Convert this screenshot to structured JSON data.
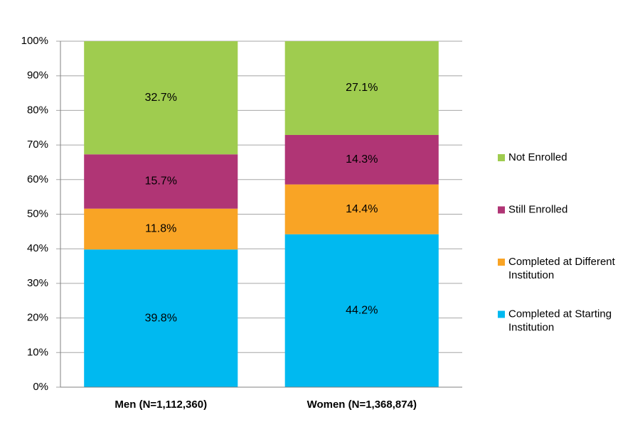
{
  "chart_data": {
    "type": "stacked-bar",
    "categories": [
      "Men (N=1,112,360)",
      "Women (N=1,368,874)"
    ],
    "series": [
      {
        "name": "Completed at Starting Institution",
        "color": "#00b9f0",
        "values": [
          39.8,
          44.2
        ],
        "value_labels": [
          "39.8%",
          "44.2%"
        ]
      },
      {
        "name": "Completed at Different Institution",
        "color": "#f9a425",
        "values": [
          11.8,
          14.4
        ],
        "value_labels": [
          "11.8%",
          "14.4%"
        ]
      },
      {
        "name": "Still Enrolled",
        "color": "#b03575",
        "values": [
          15.7,
          14.3
        ],
        "value_labels": [
          "15.7%",
          "14.3%"
        ]
      },
      {
        "name": "Not Enrolled",
        "color": "#9fcc4f",
        "values": [
          32.7,
          27.1
        ],
        "value_labels": [
          "32.7%",
          "27.1%"
        ]
      }
    ],
    "ylim": [
      0,
      100
    ],
    "yticks": [
      {
        "value": 0,
        "label": "0%"
      },
      {
        "value": 10,
        "label": "10%"
      },
      {
        "value": 20,
        "label": "20%"
      },
      {
        "value": 30,
        "label": "30%"
      },
      {
        "value": 40,
        "label": "40%"
      },
      {
        "value": 50,
        "label": "50%"
      },
      {
        "value": 60,
        "label": "60%"
      },
      {
        "value": 70,
        "label": "70%"
      },
      {
        "value": 80,
        "label": "80%"
      },
      {
        "value": 90,
        "label": "90%"
      },
      {
        "value": 100,
        "label": "100%"
      }
    ],
    "grid": true,
    "legend": "right"
  }
}
